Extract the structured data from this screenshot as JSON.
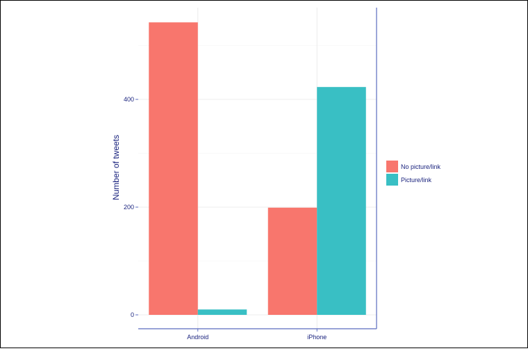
{
  "chart_data": {
    "type": "bar",
    "categories": [
      "Android",
      "iPhone"
    ],
    "series": [
      {
        "name": "No picture/link",
        "values": [
          543,
          199
        ],
        "color": "#F8766D"
      },
      {
        "name": "Picture/link",
        "values": [
          10,
          423
        ],
        "color": "#39BFC4"
      }
    ],
    "ylabel": "Number of tweets",
    "xlabel": "",
    "ylim": [
      0,
      570
    ],
    "yticks": [
      0,
      200,
      400
    ],
    "grid": true,
    "legend_position": "right",
    "axis_color": "#5B6BBF",
    "text_color": "#1a237e"
  }
}
